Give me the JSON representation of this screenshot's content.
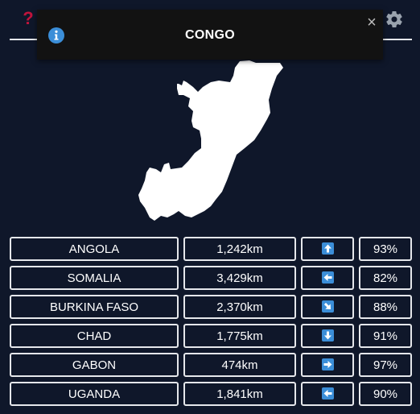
{
  "toast": {
    "title": "CONGO"
  },
  "icons": {
    "help": "question-mark-icon",
    "settings": "gear-icon",
    "info": "info-icon",
    "close": "close-icon"
  },
  "help_glyph": "?",
  "close_glyph": "×",
  "colors": {
    "background": "#0f172a",
    "help_icon": "#c0143c",
    "info_icon": "#3b8ed8",
    "arrow_badge": "#3b8ed8",
    "toast_bg": "#121212"
  },
  "guesses": [
    {
      "country": "ANGOLA",
      "distance": "1,242km",
      "direction": "up",
      "proximity": "93%"
    },
    {
      "country": "SOMALIA",
      "distance": "3,429km",
      "direction": "left",
      "proximity": "82%"
    },
    {
      "country": "BURKINA FASO",
      "distance": "2,370km",
      "direction": "down-right",
      "proximity": "88%"
    },
    {
      "country": "CHAD",
      "distance": "1,775km",
      "direction": "down",
      "proximity": "91%"
    },
    {
      "country": "GABON",
      "distance": "474km",
      "direction": "right",
      "proximity": "97%"
    },
    {
      "country": "UGANDA",
      "distance": "1,841km",
      "direction": "left",
      "proximity": "90%"
    }
  ]
}
